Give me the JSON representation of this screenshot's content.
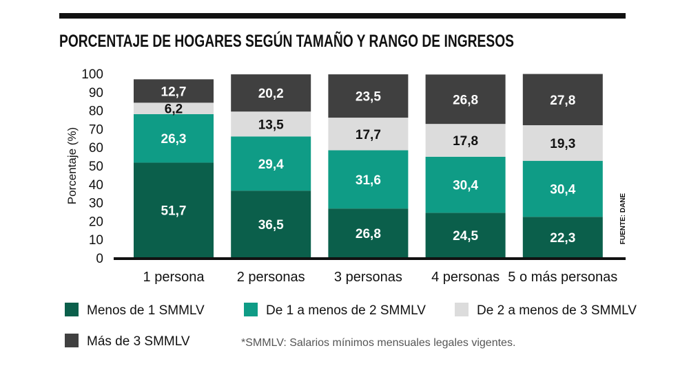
{
  "chart_data": {
    "type": "bar",
    "stacked": true,
    "title": "PORCENTAJE DE HOGARES SEGÚN TAMAÑO Y RANGO DE INGRESOS",
    "xlabel": "",
    "ylabel": "Porcentaje (%)",
    "ylim": [
      0,
      100
    ],
    "yticks": [
      0,
      10,
      20,
      30,
      40,
      50,
      60,
      70,
      80,
      90,
      100
    ],
    "grid": false,
    "legend_placement": "bottom",
    "categories": [
      "1 persona",
      "2 personas",
      "3 personas",
      "4 personas",
      "5 o más personas"
    ],
    "series": [
      {
        "name": "Menos de 1 SMMLV",
        "color": "#0b5f4b",
        "label_color": "#ffffff",
        "values": [
          51.7,
          36.5,
          26.8,
          24.5,
          22.3
        ],
        "labels": [
          "51,7",
          "36,5",
          "26,8",
          "24,5",
          "22,3"
        ]
      },
      {
        "name": "De 1 a menos de 2 SMMLV",
        "color": "#0f9c86",
        "label_color": "#ffffff",
        "values": [
          26.3,
          29.4,
          31.6,
          30.4,
          30.4
        ],
        "labels": [
          "26,3",
          "29,4",
          "31,6",
          "30,4",
          "30,4"
        ]
      },
      {
        "name": "De 2 a menos de 3 SMMLV",
        "color": "#dcdcdc",
        "label_color": "#111111",
        "values": [
          6.2,
          13.5,
          17.7,
          17.8,
          19.3
        ],
        "labels": [
          "6,2",
          "13,5",
          "17,7",
          "17,8",
          "19,3"
        ]
      },
      {
        "name": "Más de 3 SMMLV",
        "color": "#404040",
        "label_color": "#ffffff",
        "values": [
          12.7,
          20.2,
          23.5,
          26.8,
          27.8
        ],
        "labels": [
          "12,7",
          "20,2",
          "23,5",
          "26,8",
          "27,8"
        ]
      }
    ],
    "source": "FUENTE: DANE",
    "footnote": "*SMMLV: Salarios mínimos mensuales legales vigentes."
  }
}
